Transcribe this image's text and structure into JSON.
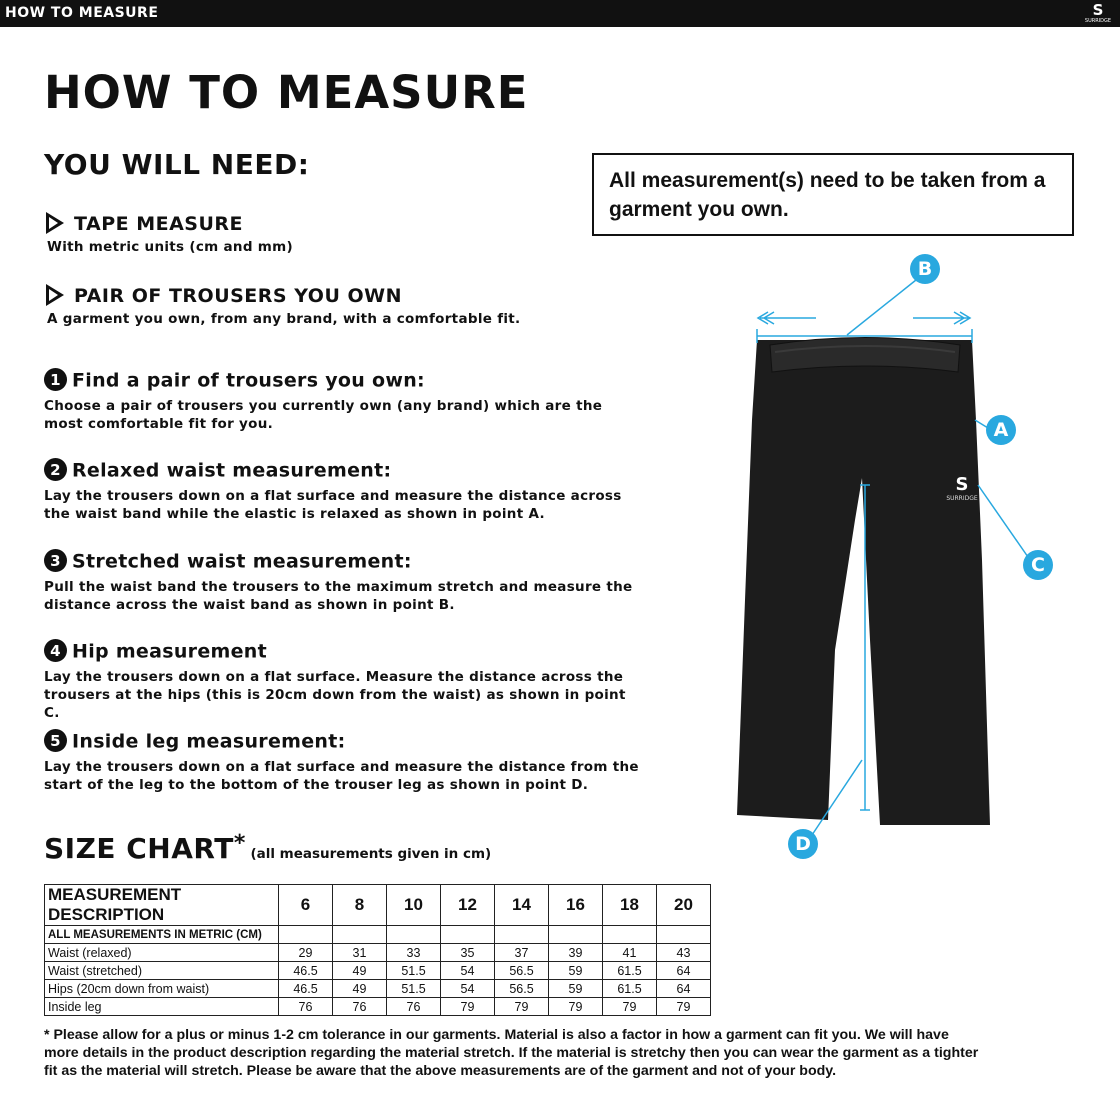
{
  "topbar": {
    "title": "HOW TO MEASURE",
    "logo": "SURRIDGE"
  },
  "page_title": "HOW TO MEASURE",
  "need": {
    "heading": "YOU WILL NEED:",
    "items": [
      {
        "title": "TAPE MEASURE",
        "desc": "With metric units (cm and mm)"
      },
      {
        "title": "PAIR OF TROUSERS YOU OWN",
        "desc": "A garment you own, from any brand, with a comfortable fit."
      }
    ]
  },
  "note": "All measurement(s) need to be taken from a garment you own.",
  "steps": [
    {
      "n": "1",
      "title": "Find a pair of trousers you own:",
      "desc": "Choose a pair of trousers you currently own (any brand) which are the most comfortable fit for you."
    },
    {
      "n": "2",
      "title": "Relaxed waist measurement:",
      "desc": "Lay the trousers down on a flat surface and measure the distance across the waist band while the elastic is relaxed as shown in point A."
    },
    {
      "n": "3",
      "title": "Stretched waist measurement:",
      "desc": "Pull the waist band the trousers to the maximum stretch and measure the distance across the waist band as shown in point B."
    },
    {
      "n": "4",
      "title": "Hip measurement",
      "desc": "Lay the trousers down on a flat surface. Measure the distance across the trousers at the hips (this is 20cm down from the waist) as shown in point C."
    },
    {
      "n": "5",
      "title": "Inside leg measurement:",
      "desc": "Lay the trousers down on a flat surface and measure the distance from the start of the leg to the bottom of the trouser leg as shown in point D."
    }
  ],
  "size_chart": {
    "title": "SIZE CHART",
    "asterisk": "*",
    "subtitle": "(all measurements given in cm)",
    "header": [
      "MEASUREMENT DESCRIPTION",
      "6",
      "8",
      "10",
      "12",
      "14",
      "16",
      "18",
      "20"
    ],
    "subheader": "ALL MEASUREMENTS IN METRIC (CM)",
    "rows": [
      [
        "Waist (relaxed)",
        "29",
        "31",
        "33",
        "35",
        "37",
        "39",
        "41",
        "43"
      ],
      [
        "Waist (stretched)",
        "46.5",
        "49",
        "51.5",
        "54",
        "56.5",
        "59",
        "61.5",
        "64"
      ],
      [
        "Hips (20cm down from waist)",
        "46.5",
        "49",
        "51.5",
        "54",
        "56.5",
        "59",
        "61.5",
        "64"
      ],
      [
        "Inside leg",
        "76",
        "76",
        "76",
        "79",
        "79",
        "79",
        "79",
        "79"
      ]
    ]
  },
  "footnote": "* Please allow for a plus or minus 1-2 cm tolerance in our garments. Material is also a factor in how a garment can fit you. We will have more details in the product description regarding the material stretch.  If the material is stretchy then you can wear the garment as a tighter fit as the material will stretch.  Please be aware that the above measurements are of the garment and not of your body.",
  "diagram": {
    "points": [
      "A",
      "B",
      "C",
      "D"
    ],
    "garment_logo": "SURRIDGE",
    "accent": "#29a8df"
  }
}
